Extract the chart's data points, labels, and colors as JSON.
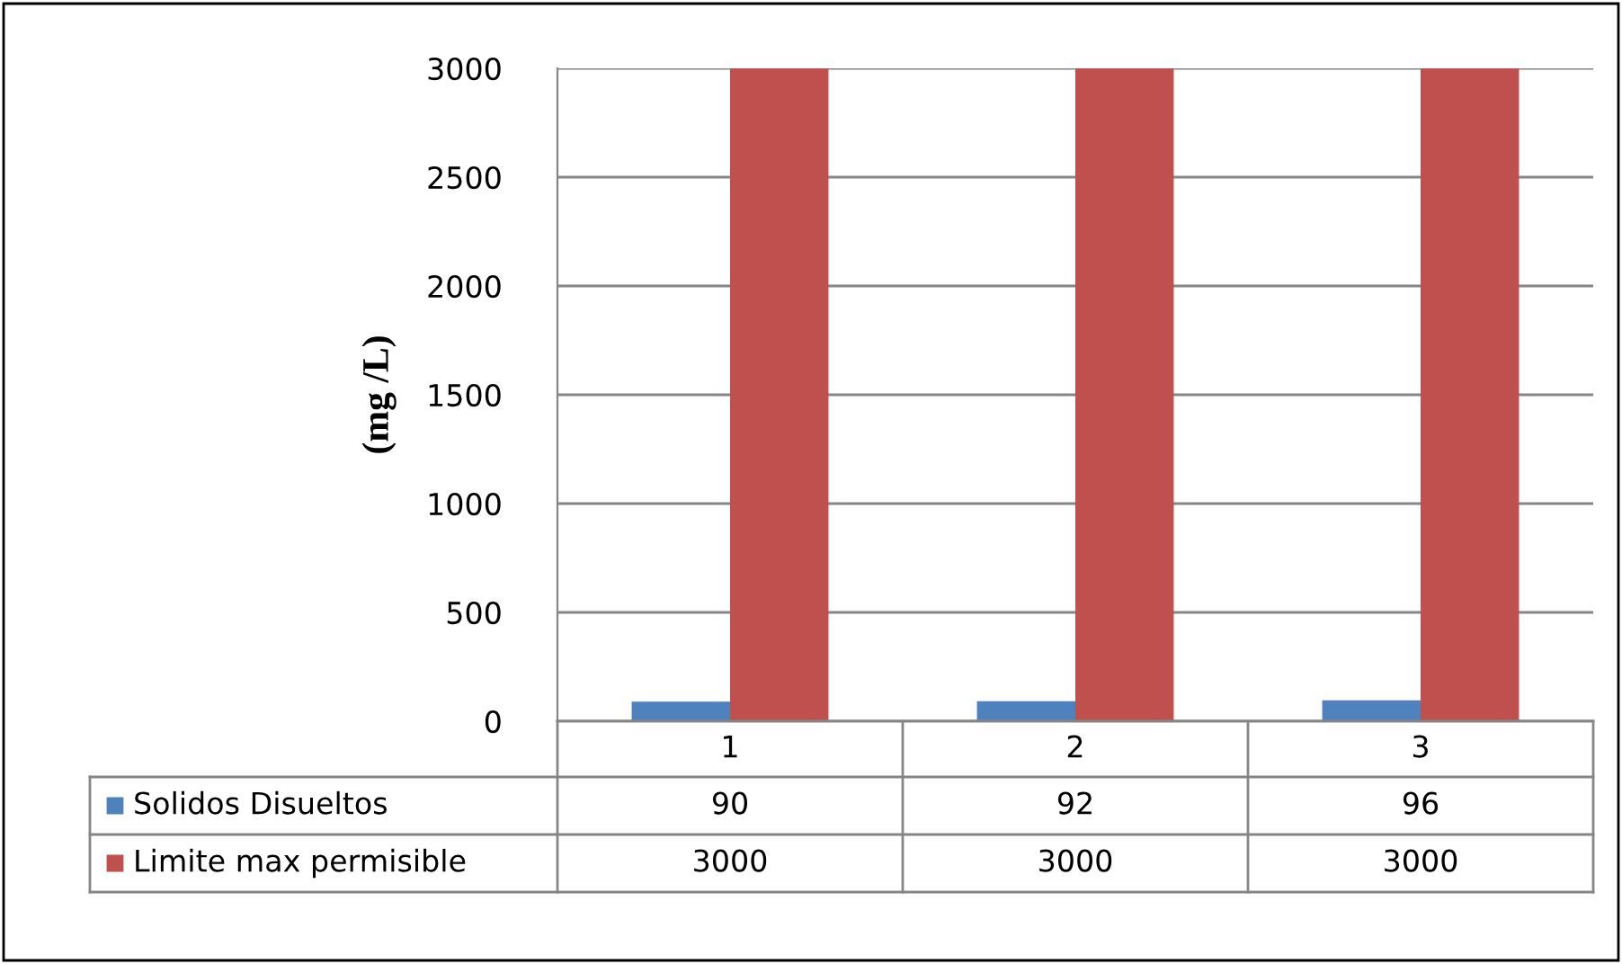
{
  "chart_data": {
    "type": "bar",
    "ylabel": "(mg /L)",
    "categories": [
      "1",
      "2",
      "3"
    ],
    "series": [
      {
        "name": "Solidos Disueltos",
        "color": "#4f81bd",
        "values": [
          90,
          92,
          96
        ]
      },
      {
        "name": "Limite max permisible",
        "color": "#c0504d",
        "values": [
          3000,
          3000,
          3000
        ]
      }
    ],
    "ylim": [
      0,
      3000
    ],
    "yticks": [
      0,
      500,
      1000,
      1500,
      2000,
      2500,
      3000
    ],
    "grid": "y",
    "legend": "bottom left",
    "data_labels": true
  }
}
